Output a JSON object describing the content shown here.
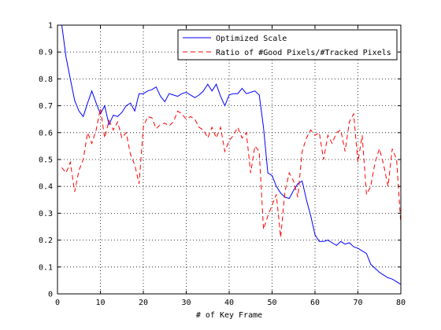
{
  "chart_data": {
    "type": "line",
    "title": "",
    "xlabel": "# of Key Frame",
    "ylabel": "",
    "xlim": [
      0,
      80
    ],
    "ylim": [
      0,
      1
    ],
    "xticks": [
      0,
      10,
      20,
      30,
      40,
      50,
      60,
      70,
      80
    ],
    "yticks": [
      0,
      0.1,
      0.2,
      0.3,
      0.4,
      0.5,
      0.6,
      0.7,
      0.8,
      0.9,
      1
    ],
    "grid": true,
    "grid_style": "dotted",
    "legend_position": "top-right",
    "series": [
      {
        "name": "Optimized Scale",
        "color": "#0000ff",
        "dash": "solid",
        "x": [
          1,
          2,
          3,
          4,
          5,
          6,
          7,
          8,
          9,
          10,
          11,
          12,
          13,
          14,
          15,
          16,
          17,
          18,
          19,
          20,
          21,
          22,
          23,
          24,
          25,
          26,
          27,
          28,
          29,
          30,
          31,
          32,
          33,
          34,
          35,
          36,
          37,
          38,
          39,
          40,
          41,
          42,
          43,
          44,
          45,
          46,
          47,
          48,
          49,
          50,
          51,
          52,
          53,
          54,
          55,
          56,
          57,
          58,
          59,
          60,
          61,
          62,
          63,
          64,
          65,
          66,
          67,
          68,
          69,
          70,
          71,
          72,
          73,
          74,
          75,
          76,
          77,
          78,
          79,
          80
        ],
        "y": [
          1.0,
          0.88,
          0.8,
          0.72,
          0.68,
          0.66,
          0.71,
          0.755,
          0.71,
          0.67,
          0.7,
          0.63,
          0.665,
          0.66,
          0.675,
          0.7,
          0.71,
          0.68,
          0.745,
          0.745,
          0.755,
          0.76,
          0.77,
          0.735,
          0.715,
          0.745,
          0.74,
          0.735,
          0.745,
          0.75,
          0.74,
          0.73,
          0.74,
          0.755,
          0.78,
          0.755,
          0.78,
          0.735,
          0.7,
          0.74,
          0.745,
          0.745,
          0.765,
          0.745,
          0.75,
          0.755,
          0.74,
          0.62,
          0.45,
          0.44,
          0.4,
          0.375,
          0.36,
          0.355,
          0.385,
          0.41,
          0.42,
          0.35,
          0.29,
          0.22,
          0.195,
          0.195,
          0.2,
          0.19,
          0.18,
          0.195,
          0.185,
          0.19,
          0.175,
          0.17,
          0.16,
          0.15,
          0.11,
          0.095,
          0.08,
          0.07,
          0.06,
          0.055,
          0.045,
          0.035
        ]
      },
      {
        "name": "Ratio of #Good Pixels/#Tracked Pixels",
        "color": "#ff0000",
        "dash": "dashed",
        "x": [
          1,
          2,
          3,
          4,
          5,
          6,
          7,
          8,
          9,
          10,
          11,
          12,
          13,
          14,
          15,
          16,
          17,
          18,
          19,
          20,
          21,
          22,
          23,
          24,
          25,
          26,
          27,
          28,
          29,
          30,
          31,
          32,
          33,
          34,
          35,
          36,
          37,
          38,
          39,
          40,
          41,
          42,
          43,
          44,
          45,
          46,
          47,
          48,
          49,
          50,
          51,
          52,
          53,
          54,
          55,
          56,
          57,
          58,
          59,
          60,
          61,
          62,
          63,
          64,
          65,
          66,
          67,
          68,
          69,
          70,
          71,
          72,
          73,
          74,
          75,
          76,
          77,
          78,
          79,
          80
        ],
        "y": [
          0.47,
          0.45,
          0.49,
          0.38,
          0.46,
          0.5,
          0.6,
          0.56,
          0.61,
          0.69,
          0.58,
          0.645,
          0.61,
          0.64,
          0.58,
          0.6,
          0.52,
          0.48,
          0.41,
          0.62,
          0.66,
          0.655,
          0.615,
          0.63,
          0.635,
          0.625,
          0.64,
          0.68,
          0.67,
          0.65,
          0.66,
          0.65,
          0.62,
          0.61,
          0.58,
          0.62,
          0.58,
          0.62,
          0.53,
          0.57,
          0.59,
          0.62,
          0.58,
          0.6,
          0.45,
          0.55,
          0.53,
          0.24,
          0.29,
          0.33,
          0.37,
          0.21,
          0.38,
          0.45,
          0.42,
          0.36,
          0.53,
          0.58,
          0.61,
          0.59,
          0.6,
          0.5,
          0.59,
          0.56,
          0.6,
          0.61,
          0.53,
          0.64,
          0.67,
          0.49,
          0.59,
          0.37,
          0.4,
          0.49,
          0.54,
          0.48,
          0.4,
          0.54,
          0.5,
          0.26
        ]
      }
    ]
  }
}
